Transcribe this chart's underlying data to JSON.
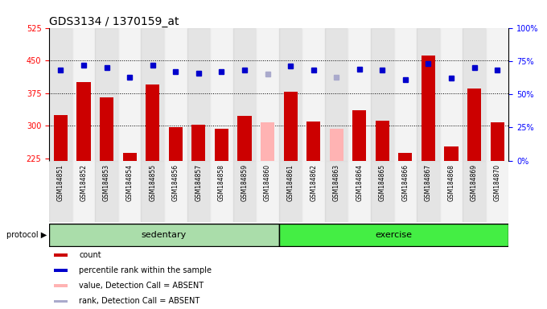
{
  "title": "GDS3134 / 1370159_at",
  "samples": [
    "GSM184851",
    "GSM184852",
    "GSM184853",
    "GSM184854",
    "GSM184855",
    "GSM184856",
    "GSM184857",
    "GSM184858",
    "GSM184859",
    "GSM184860",
    "GSM184861",
    "GSM184862",
    "GSM184863",
    "GSM184864",
    "GSM184865",
    "GSM184866",
    "GSM184867",
    "GSM184868",
    "GSM184869",
    "GSM184870"
  ],
  "bar_values": [
    325,
    400,
    365,
    237,
    395,
    297,
    302,
    293,
    322,
    308,
    378,
    310,
    293,
    335,
    312,
    237,
    462,
    253,
    385,
    308
  ],
  "bar_absent": [
    false,
    false,
    false,
    false,
    false,
    false,
    false,
    false,
    false,
    true,
    false,
    false,
    true,
    false,
    false,
    false,
    false,
    false,
    false,
    false
  ],
  "dot_values_pct": [
    68,
    72,
    70,
    63,
    72,
    67,
    66,
    67,
    68,
    65,
    71,
    68,
    63,
    69,
    68,
    61,
    73,
    62,
    70,
    68
  ],
  "dot_absent": [
    false,
    false,
    false,
    false,
    false,
    false,
    false,
    false,
    false,
    true,
    false,
    false,
    true,
    false,
    false,
    false,
    false,
    false,
    false,
    false
  ],
  "ylim_left": [
    220,
    525
  ],
  "ylim_right": [
    0,
    100
  ],
  "yticks_left": [
    225,
    300,
    375,
    450,
    525
  ],
  "yticks_right": [
    0,
    25,
    50,
    75,
    100
  ],
  "ytick_labels_right": [
    "0%",
    "25%",
    "50%",
    "75%",
    "100%"
  ],
  "grid_values": [
    300,
    375,
    450
  ],
  "bar_color": "#cc0000",
  "bar_absent_color": "#ffb3b3",
  "dot_color": "#0000cc",
  "dot_absent_color": "#aaaacc",
  "col_bg_color": "#d3d3d3",
  "plot_bg": "#ffffff",
  "sedentary_count": 10,
  "exercise_count": 10,
  "sedentary_color": "#aaddaa",
  "exercise_color": "#44ee44",
  "protocol_label": "protocol",
  "sedentary_label": "sedentary",
  "exercise_label": "exercise",
  "legend_items": [
    {
      "label": "count",
      "color": "#cc0000"
    },
    {
      "label": "percentile rank within the sample",
      "color": "#0000cc"
    },
    {
      "label": "value, Detection Call = ABSENT",
      "color": "#ffb3b3"
    },
    {
      "label": "rank, Detection Call = ABSENT",
      "color": "#aaaacc"
    }
  ],
  "title_fontsize": 10,
  "tick_fontsize": 7,
  "label_fontsize": 8
}
